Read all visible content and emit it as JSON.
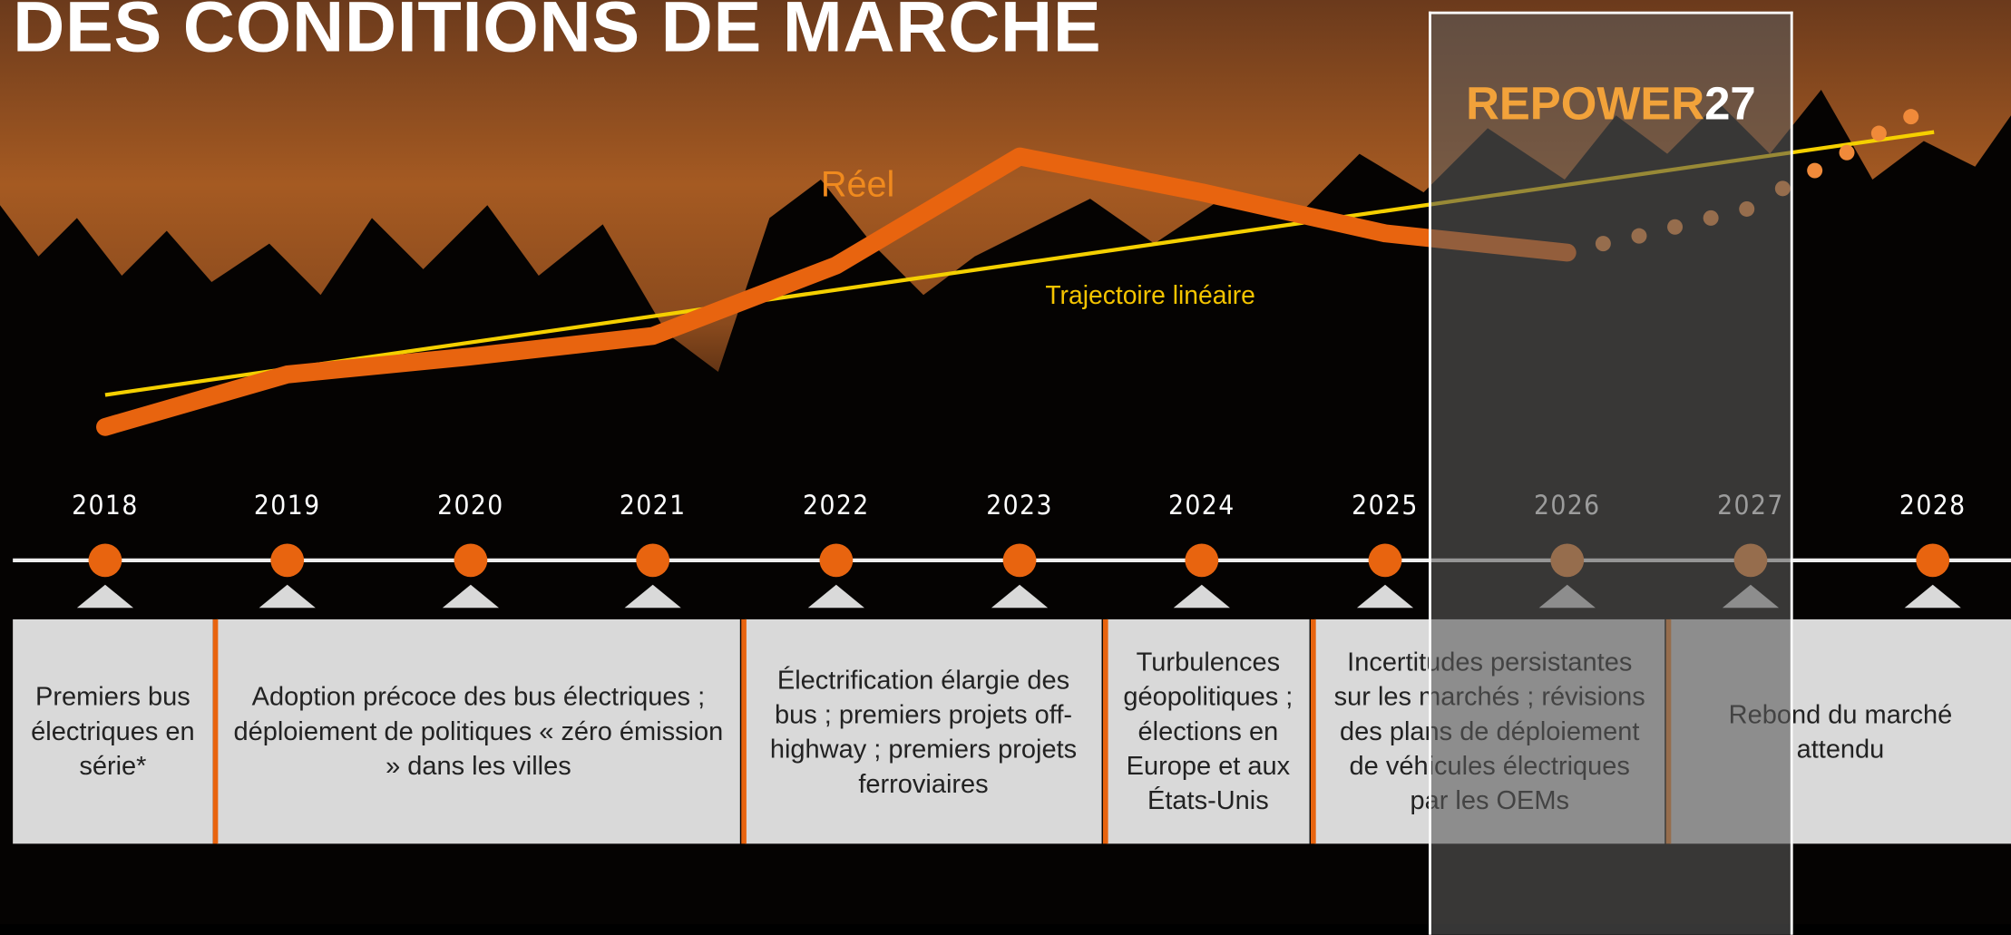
{
  "header": {
    "title": "DES CONDITIONS DE MARCHÉ"
  },
  "logo": {
    "text": "REPOWER",
    "number": "27"
  },
  "labels": {
    "actual": "Réel",
    "trend": "Trajectoire linéaire"
  },
  "timeline": {
    "years": [
      "2018",
      "2019",
      "2020",
      "2021",
      "2022",
      "2023",
      "2024",
      "2025",
      "2026",
      "2027",
      "2028"
    ]
  },
  "milestones": [
    "Premiers bus électriques en série*",
    "Adoption précoce des bus électriques ; déploiement de politiques « zéro émission » dans les villes",
    "Électrification élargie des bus ; premiers projets off-highway ; premiers projets ferroviaires",
    "Turbulences géopolitiques ; élections en Europe et aux États-Unis",
    "Incertitudes persistantes sur les marchés ; révisions des plans de déploiement de véhicules électriques par les OEMs",
    "Rebond du marché attendu"
  ]
}
